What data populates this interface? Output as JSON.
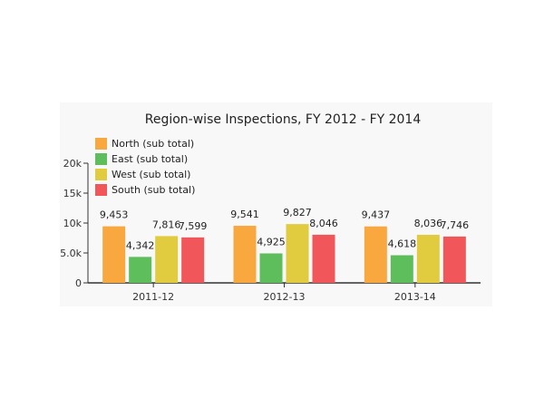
{
  "chart_data": {
    "type": "bar",
    "title": "Region-wise Inspections, FY 2012 - FY 2014",
    "categories": [
      "2011-12",
      "2012-13",
      "2013-14"
    ],
    "series": [
      {
        "name": "North (sub total)",
        "color": "#f9a83f",
        "values": [
          9453,
          9541,
          9437
        ],
        "labels": [
          "9,453",
          "9,541",
          "9,437"
        ]
      },
      {
        "name": "East (sub total)",
        "color": "#5fbe5c",
        "values": [
          4342,
          4925,
          4618
        ],
        "labels": [
          "4,342",
          "4,925",
          "4,618"
        ]
      },
      {
        "name": "West (sub total)",
        "color": "#e0cc3e",
        "values": [
          7816,
          9827,
          8036
        ],
        "labels": [
          "7,816",
          "9,827",
          "8,036"
        ]
      },
      {
        "name": "South (sub total)",
        "color": "#f1575a",
        "values": [
          7599,
          8046,
          7746
        ],
        "labels": [
          "7,599",
          "8,046",
          "7,746"
        ]
      }
    ],
    "ylim": [
      0,
      20000
    ],
    "yticks": [
      0,
      5000,
      10000,
      15000,
      20000
    ],
    "ytick_labels": [
      "0",
      "5.0k",
      "10k",
      "15k",
      "20k"
    ],
    "legend_position": "top-left",
    "grid": false
  }
}
